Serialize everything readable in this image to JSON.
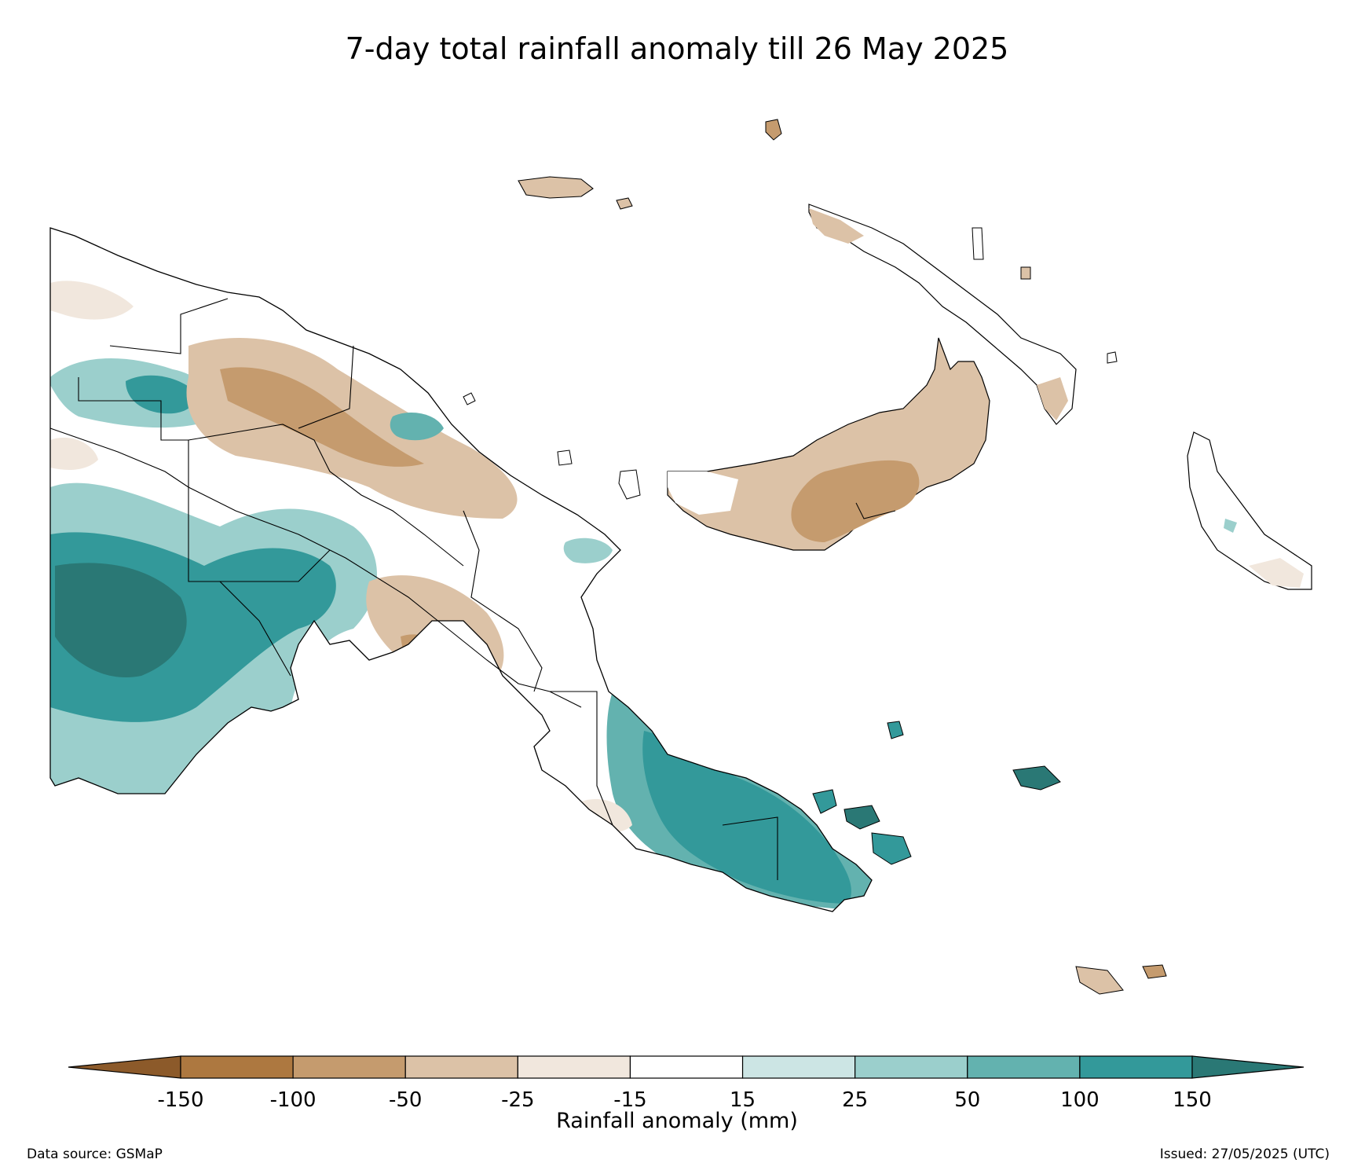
{
  "title": "7-day total rainfall anomaly till 26 May 2025",
  "colorbar": {
    "label": "Rainfall anomaly (mm)",
    "ticks": [
      "-150",
      "-100",
      "-50",
      "-25",
      "-15",
      "15",
      "25",
      "50",
      "100",
      "150"
    ],
    "bins": [
      {
        "range": "below -150",
        "color": "#8c5a2a"
      },
      {
        "range": "-150 to -100",
        "color": "#ad7840"
      },
      {
        "range": "-100 to -50",
        "color": "#c59b6e"
      },
      {
        "range": "-50 to -25",
        "color": "#dcc2a7"
      },
      {
        "range": "-25 to -15",
        "color": "#f1e7dd"
      },
      {
        "range": "-15 to 15",
        "color": "#ffffff"
      },
      {
        "range": "15 to 25",
        "color": "#cce5e4"
      },
      {
        "range": "25 to 50",
        "color": "#9bcfcc"
      },
      {
        "range": "50 to 100",
        "color": "#63b2af"
      },
      {
        "range": "100 to 150",
        "color": "#33999a"
      },
      {
        "range": "above 150",
        "color": "#2a7875"
      }
    ]
  },
  "footer": {
    "source": "Data source: GSMaP",
    "issued": "Issued: 27/05/2025 (UTC)"
  }
}
